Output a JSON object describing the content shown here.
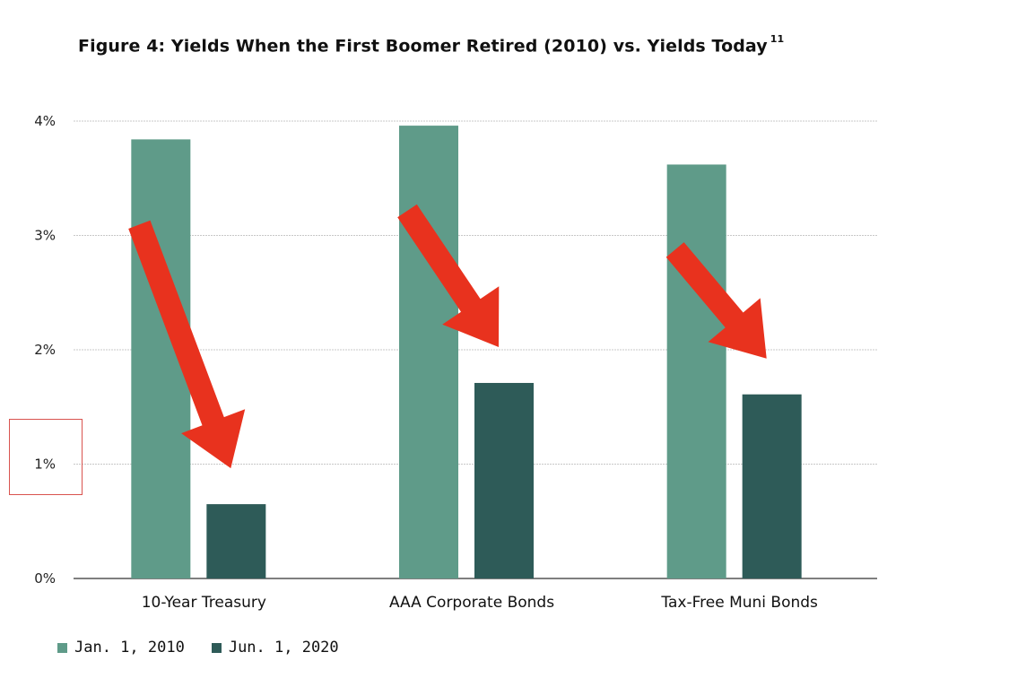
{
  "title": "Figure 4: Yields When the First Boomer Retired (2010) vs. Yields Today",
  "title_footnote": "11",
  "chart_data": {
    "type": "bar",
    "categories": [
      "10-Year Treasury",
      "AAA Corporate Bonds",
      "Tax-Free Muni Bonds"
    ],
    "series": [
      {
        "name": "Jan. 1, 2010",
        "values": [
          3.84,
          3.96,
          3.62
        ],
        "color": "#5f9b89"
      },
      {
        "name": "Jun. 1, 2020",
        "values": [
          0.65,
          1.71,
          1.61
        ],
        "color": "#2e5b58"
      }
    ],
    "yticks": [
      "0%",
      "1%",
      "2%",
      "3%",
      "4%"
    ],
    "ylim": [
      0,
      4
    ],
    "grid": true,
    "legend_position": "bottom-left",
    "annotations": [
      {
        "type": "arrow",
        "color": "#e8321e",
        "category": "10-Year Treasury",
        "direction": "down"
      },
      {
        "type": "arrow",
        "color": "#e8321e",
        "category": "AAA Corporate Bonds",
        "direction": "down"
      },
      {
        "type": "arrow",
        "color": "#e8321e",
        "category": "Tax-Free Muni Bonds",
        "direction": "down"
      },
      {
        "type": "highlight-box",
        "color": "#d9534f",
        "target": "1%"
      }
    ]
  }
}
